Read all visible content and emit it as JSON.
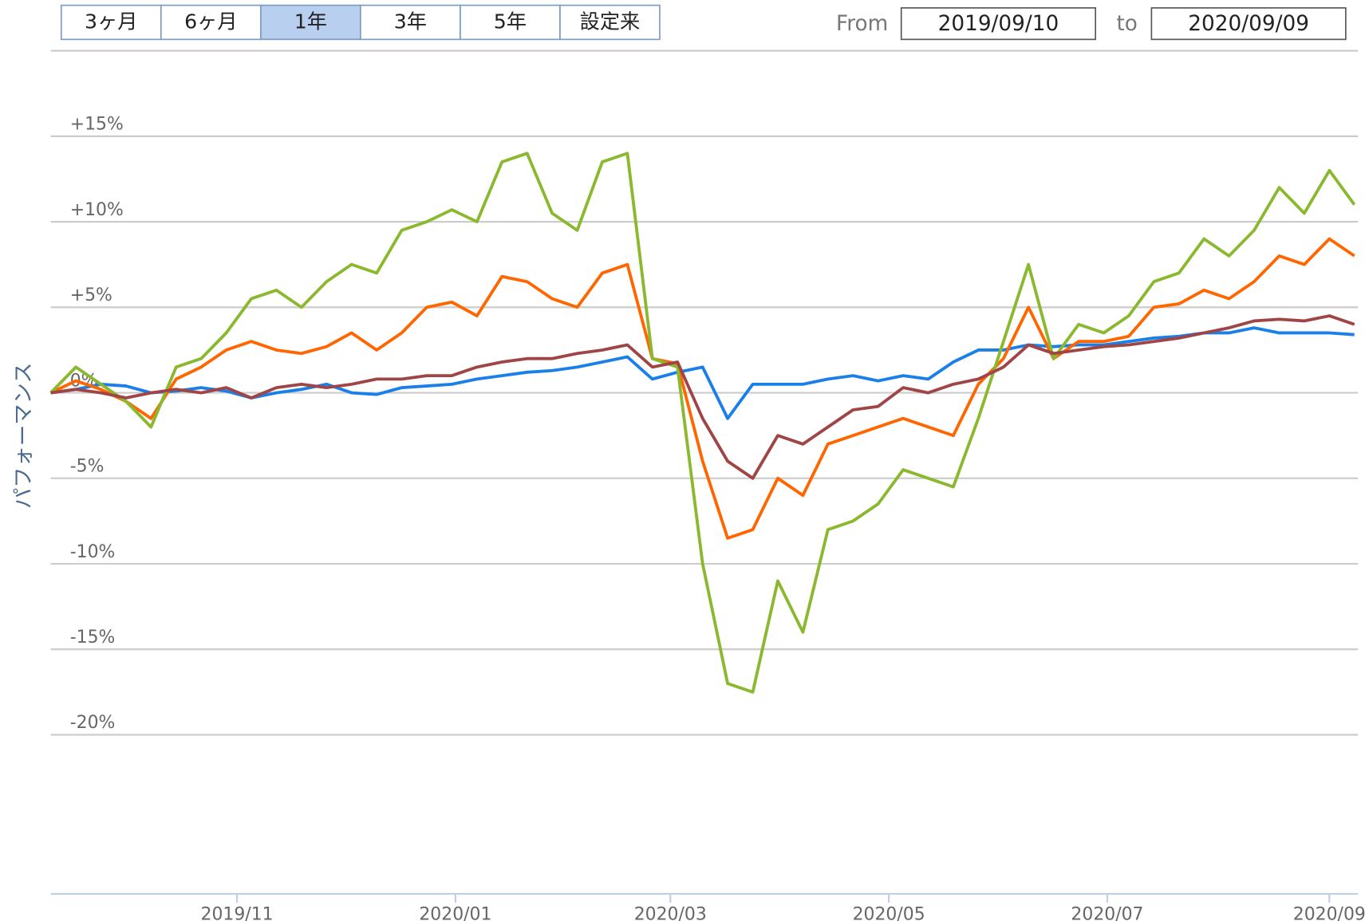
{
  "controls": {
    "ranges": [
      "3ヶ月",
      "6ヶ月",
      "1年",
      "3年",
      "5年",
      "設定来"
    ],
    "selected": 2,
    "from_label": "From",
    "to_label": "to"
  },
  "chart_data": {
    "type": "line",
    "y_label": "パフォーマンス",
    "xlim": [
      "2019/09/10",
      "2020/09/09"
    ],
    "xticks": [
      "2019/11",
      "2020/01",
      "2020/03",
      "2020/05",
      "2020/07",
      "2020/09"
    ],
    "ylim": [
      -29.3,
      20
    ],
    "yticks": [
      {
        "value": 15,
        "label": "+15%"
      },
      {
        "value": 10,
        "label": "+10%"
      },
      {
        "value": 5,
        "label": "+5%"
      },
      {
        "value": 0,
        "label": "0%"
      },
      {
        "value": -5,
        "label": "-5%"
      },
      {
        "value": -10,
        "label": "-10%"
      },
      {
        "value": -15,
        "label": "-15%"
      },
      {
        "value": -20,
        "label": "-20%"
      }
    ],
    "grid": true,
    "x": [
      "2019/09/10",
      "2019/09/17",
      "2019/09/24",
      "2019/10/01",
      "2019/10/08",
      "2019/10/15",
      "2019/10/22",
      "2019/10/29",
      "2019/11/05",
      "2019/11/12",
      "2019/11/19",
      "2019/11/26",
      "2019/12/03",
      "2019/12/10",
      "2019/12/17",
      "2019/12/24",
      "2019/12/31",
      "2020/01/07",
      "2020/01/14",
      "2020/01/21",
      "2020/01/28",
      "2020/02/04",
      "2020/02/11",
      "2020/02/18",
      "2020/02/25",
      "2020/03/03",
      "2020/03/10",
      "2020/03/17",
      "2020/03/24",
      "2020/03/31",
      "2020/04/07",
      "2020/04/14",
      "2020/04/21",
      "2020/04/28",
      "2020/05/05",
      "2020/05/12",
      "2020/05/19",
      "2020/05/26",
      "2020/06/02",
      "2020/06/09",
      "2020/06/16",
      "2020/06/23",
      "2020/06/30",
      "2020/07/07",
      "2020/07/14",
      "2020/07/21",
      "2020/07/28",
      "2020/08/04",
      "2020/08/11",
      "2020/08/18",
      "2020/08/25",
      "2020/09/01",
      "2020/09/08"
    ],
    "series": [
      {
        "color": "#1a7fe8",
        "values": [
          0,
          0.2,
          0.5,
          0.4,
          0,
          0.1,
          0.3,
          0.1,
          -0.3,
          0,
          0.2,
          0.5,
          0,
          -0.1,
          0.3,
          0.4,
          0.5,
          0.8,
          1,
          1.2,
          1.3,
          1.5,
          1.8,
          2.1,
          0.8,
          1.2,
          1.5,
          -1.5,
          0.5,
          0.5,
          0.5,
          0.8,
          1,
          0.7,
          1,
          0.8,
          1.8,
          2.5,
          2.5,
          2.8,
          2.7,
          2.8,
          2.8,
          3,
          3.2,
          3.3,
          3.5,
          3.5,
          3.8,
          3.5,
          3.5,
          3.5,
          3.4
        ]
      },
      {
        "color": "#ff6600",
        "values": [
          0,
          0.7,
          0.2,
          -0.5,
          -1.5,
          0.8,
          1.5,
          2.5,
          3,
          2.5,
          2.3,
          2.7,
          3.5,
          2.5,
          3.5,
          5,
          5.3,
          4.5,
          6.8,
          6.5,
          5.5,
          5,
          7,
          7.5,
          2,
          1.7,
          -4,
          -8.5,
          -8,
          -5,
          -6,
          -3,
          -2.5,
          -2,
          -1.5,
          -2,
          -2.5,
          0.5,
          2,
          5,
          2,
          3,
          3,
          3.3,
          5,
          5.2,
          6,
          5.5,
          6.5,
          8,
          7.5,
          9,
          8
        ]
      },
      {
        "color": "#8ab82e",
        "values": [
          0,
          1.5,
          0.5,
          -0.5,
          -2,
          1.5,
          2,
          3.5,
          5.5,
          6,
          5,
          6.5,
          7.5,
          7,
          9.5,
          10,
          10.7,
          10,
          13.5,
          14,
          10.5,
          9.5,
          13.5,
          14,
          2,
          1.5,
          -10,
          -17,
          -17.5,
          -11,
          -14,
          -8,
          -7.5,
          -6.5,
          -4.5,
          -5,
          -5.5,
          -1.5,
          3,
          7.5,
          2,
          4,
          3.5,
          4.5,
          6.5,
          7,
          9,
          8,
          9.5,
          12,
          10.5,
          13,
          11
        ]
      },
      {
        "color": "#a04545",
        "values": [
          0,
          0.2,
          0,
          -0.3,
          0,
          0.2,
          0,
          0.3,
          -0.3,
          0.3,
          0.5,
          0.3,
          0.5,
          0.8,
          0.8,
          1,
          1,
          1.5,
          1.8,
          2,
          2,
          2.3,
          2.5,
          2.8,
          1.5,
          1.8,
          -1.5,
          -4,
          -5,
          -2.5,
          -3,
          -2,
          -1,
          -0.8,
          0.3,
          0,
          0.5,
          0.8,
          1.5,
          2.8,
          2.3,
          2.5,
          2.7,
          2.8,
          3,
          3.2,
          3.5,
          3.8,
          4.2,
          4.3,
          4.2,
          4.5,
          4
        ]
      }
    ]
  }
}
